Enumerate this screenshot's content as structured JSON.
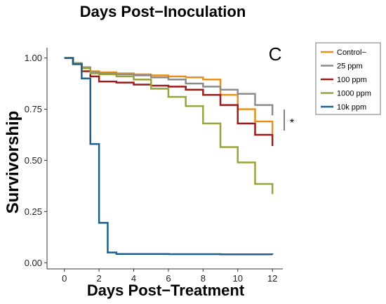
{
  "chart_data": {
    "type": "line",
    "step": true,
    "title": "Days Post−Inoculation",
    "xlabel": "Days Post−Treatment",
    "ylabel": "Survivorship",
    "panel_label": "C",
    "annotation": "*",
    "xlim": [
      -1,
      12.6
    ],
    "ylim": [
      -0.03,
      1.05
    ],
    "x_ticks": [
      0,
      2,
      4,
      6,
      8,
      10,
      12
    ],
    "y_ticks": [
      0.0,
      0.25,
      0.5,
      0.75,
      1.0
    ],
    "y_tick_labels": [
      "0.00",
      "0.25",
      "0.50",
      "0.75",
      "1.00"
    ],
    "grid": false,
    "legend_position": "top-right",
    "series": [
      {
        "name": "Control−",
        "color": "#E8901C",
        "x": [
          0,
          0.5,
          1,
          1.5,
          2,
          3,
          4,
          5,
          6,
          7,
          8,
          9,
          10,
          11,
          12
        ],
        "y": [
          1.0,
          0.975,
          0.95,
          0.935,
          0.93,
          0.925,
          0.92,
          0.915,
          0.91,
          0.905,
          0.895,
          0.82,
          0.75,
          0.69,
          0.63
        ]
      },
      {
        "name": "25 ppm",
        "color": "#8C8C8C",
        "x": [
          0,
          0.5,
          1,
          1.5,
          2,
          3,
          4,
          5,
          6,
          7,
          8,
          9,
          10,
          11,
          12
        ],
        "y": [
          1.0,
          0.975,
          0.955,
          0.93,
          0.925,
          0.92,
          0.915,
          0.905,
          0.895,
          0.875,
          0.86,
          0.845,
          0.825,
          0.77,
          0.72
        ]
      },
      {
        "name": "100 ppm",
        "color": "#9B1B1B",
        "x": [
          0,
          0.5,
          1,
          1.5,
          2,
          3,
          4,
          5,
          6,
          7,
          8,
          9,
          10,
          11,
          12
        ],
        "y": [
          1.0,
          0.97,
          0.935,
          0.91,
          0.885,
          0.88,
          0.87,
          0.865,
          0.86,
          0.845,
          0.82,
          0.77,
          0.68,
          0.625,
          0.57
        ]
      },
      {
        "name": "1000 ppm",
        "color": "#9AA23C",
        "x": [
          0,
          0.5,
          1,
          1.5,
          2,
          3,
          4,
          5,
          6,
          7,
          8,
          9,
          10,
          11,
          12
        ],
        "y": [
          1.0,
          0.975,
          0.95,
          0.925,
          0.92,
          0.91,
          0.895,
          0.85,
          0.81,
          0.765,
          0.68,
          0.565,
          0.49,
          0.385,
          0.335
        ]
      },
      {
        "name": "10k ppm",
        "color": "#1F5F8B",
        "x": [
          0,
          0.5,
          1,
          1.5,
          2,
          2.5,
          3,
          6,
          9,
          12
        ],
        "y": [
          1.0,
          0.97,
          0.9,
          0.58,
          0.195,
          0.05,
          0.043,
          0.042,
          0.041,
          0.04
        ]
      }
    ]
  }
}
